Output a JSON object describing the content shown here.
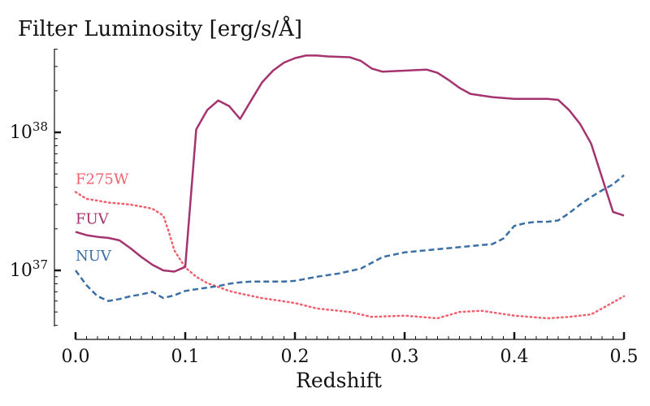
{
  "chart_data": {
    "type": "line",
    "title": "Filter Luminosity [erg/s/Å]",
    "xlabel": "Redshift",
    "ylabel": "",
    "yscale": "log",
    "xlim": [
      0.0,
      0.5
    ],
    "ylim": [
      4e+36,
      4e+38
    ],
    "grid": false,
    "legend": "inline labels at left",
    "x_ticks": [
      {
        "value": 0.0,
        "label": "0.0"
      },
      {
        "value": 0.1,
        "label": "0.1"
      },
      {
        "value": 0.2,
        "label": "0.2"
      },
      {
        "value": 0.3,
        "label": "0.3"
      },
      {
        "value": 0.4,
        "label": "0.4"
      },
      {
        "value": 0.5,
        "label": "0.5"
      }
    ],
    "y_ticks": [
      {
        "value": 1e+37,
        "base": "10",
        "exp": "37"
      },
      {
        "value": 1e+38,
        "base": "10",
        "exp": "38"
      }
    ],
    "series": [
      {
        "name": "F275W",
        "color": "#f0606e",
        "dash": "dotted",
        "x": [
          0.0,
          0.01,
          0.02,
          0.03,
          0.04,
          0.05,
          0.06,
          0.07,
          0.08,
          0.085,
          0.09,
          0.1,
          0.11,
          0.12,
          0.13,
          0.14,
          0.15,
          0.17,
          0.2,
          0.22,
          0.25,
          0.27,
          0.3,
          0.33,
          0.35,
          0.37,
          0.4,
          0.43,
          0.45,
          0.47,
          0.48,
          0.5
        ],
        "y": [
          3.7e+37,
          3.3e+37,
          3.2e+37,
          3.1e+37,
          3.05e+37,
          3e+37,
          2.9e+37,
          2.8e+37,
          2.5e+37,
          1.9e+37,
          1.4e+37,
          1.05e+37,
          9e+36,
          8.1e+36,
          7.6e+36,
          7.1e+36,
          6.8e+36,
          6.3e+36,
          5.8e+36,
          5.3e+36,
          5e+36,
          4.6e+36,
          4.7e+36,
          4.5e+36,
          5e+36,
          5.1e+36,
          4.7e+36,
          4.5e+36,
          4.6e+36,
          4.8e+36,
          5.3e+36,
          6.5e+36
        ]
      },
      {
        "name": "FUV",
        "color": "#a4336f",
        "dash": "solid",
        "x": [
          0.0,
          0.01,
          0.02,
          0.03,
          0.04,
          0.05,
          0.06,
          0.07,
          0.08,
          0.09,
          0.1,
          0.11,
          0.12,
          0.13,
          0.14,
          0.15,
          0.16,
          0.17,
          0.18,
          0.19,
          0.2,
          0.21,
          0.22,
          0.23,
          0.25,
          0.26,
          0.27,
          0.28,
          0.3,
          0.32,
          0.33,
          0.34,
          0.35,
          0.36,
          0.38,
          0.4,
          0.42,
          0.43,
          0.44,
          0.45,
          0.46,
          0.47,
          0.48,
          0.49,
          0.5
        ],
        "y": [
          1.9e+37,
          1.8e+37,
          1.75e+37,
          1.72e+37,
          1.65e+37,
          1.45e+37,
          1.25e+37,
          1.1e+37,
          1e+37,
          9.8e+36,
          1.06e+37,
          1.05e+38,
          1.45e+38,
          1.7e+38,
          1.55e+38,
          1.25e+38,
          1.7e+38,
          2.3e+38,
          2.8e+38,
          3.2e+38,
          3.45e+38,
          3.6e+38,
          3.6e+38,
          3.55e+38,
          3.5e+38,
          3.3e+38,
          2.9e+38,
          2.75e+38,
          2.8e+38,
          2.85e+38,
          2.7e+38,
          2.4e+38,
          2.1e+38,
          1.9e+38,
          1.8e+38,
          1.75e+38,
          1.75e+38,
          1.75e+38,
          1.72e+38,
          1.45e+38,
          1.15e+38,
          8.3e+37,
          4.7e+37,
          2.65e+37,
          2.5e+37
        ]
      },
      {
        "name": "NUV",
        "color": "#3a6fa6",
        "dash": "dashed",
        "x": [
          0.0,
          0.01,
          0.02,
          0.03,
          0.04,
          0.05,
          0.06,
          0.07,
          0.08,
          0.09,
          0.1,
          0.11,
          0.12,
          0.13,
          0.14,
          0.15,
          0.16,
          0.17,
          0.18,
          0.19,
          0.2,
          0.22,
          0.24,
          0.26,
          0.28,
          0.3,
          0.32,
          0.34,
          0.36,
          0.38,
          0.39,
          0.4,
          0.41,
          0.42,
          0.43,
          0.44,
          0.45,
          0.46,
          0.47,
          0.48,
          0.49,
          0.5
        ],
        "y": [
          1e+37,
          7.8e+36,
          6.5e+36,
          6e+36,
          6.2e+36,
          6.5e+36,
          6.7e+36,
          7e+36,
          6.3e+36,
          6.6e+36,
          7.1e+36,
          7.3e+36,
          7.5e+36,
          7.7e+36,
          8e+36,
          8.2e+36,
          8.3e+36,
          8.3e+36,
          8.3e+36,
          8.3e+36,
          8.4e+36,
          9e+36,
          9.5e+36,
          1.03e+37,
          1.25e+37,
          1.35e+37,
          1.4e+37,
          1.45e+37,
          1.5e+37,
          1.55e+37,
          1.7e+37,
          2.1e+37,
          2.2e+37,
          2.25e+37,
          2.25e+37,
          2.3e+37,
          2.6e+37,
          3e+37,
          3.4e+37,
          3.8e+37,
          4.2e+37,
          4.9e+37
        ]
      }
    ]
  }
}
